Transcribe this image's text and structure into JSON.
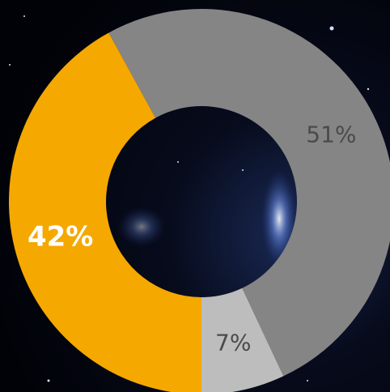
{
  "chart_data": {
    "type": "donut",
    "values": [
      51,
      7,
      42
    ],
    "value_labels": [
      "51%",
      "7%",
      "42%"
    ],
    "colors": [
      "#858585",
      "#bdbdbd",
      "#f5a800"
    ],
    "label_colors": [
      "#4a4a4a",
      "#4a4a4a",
      "#ffffff"
    ]
  }
}
